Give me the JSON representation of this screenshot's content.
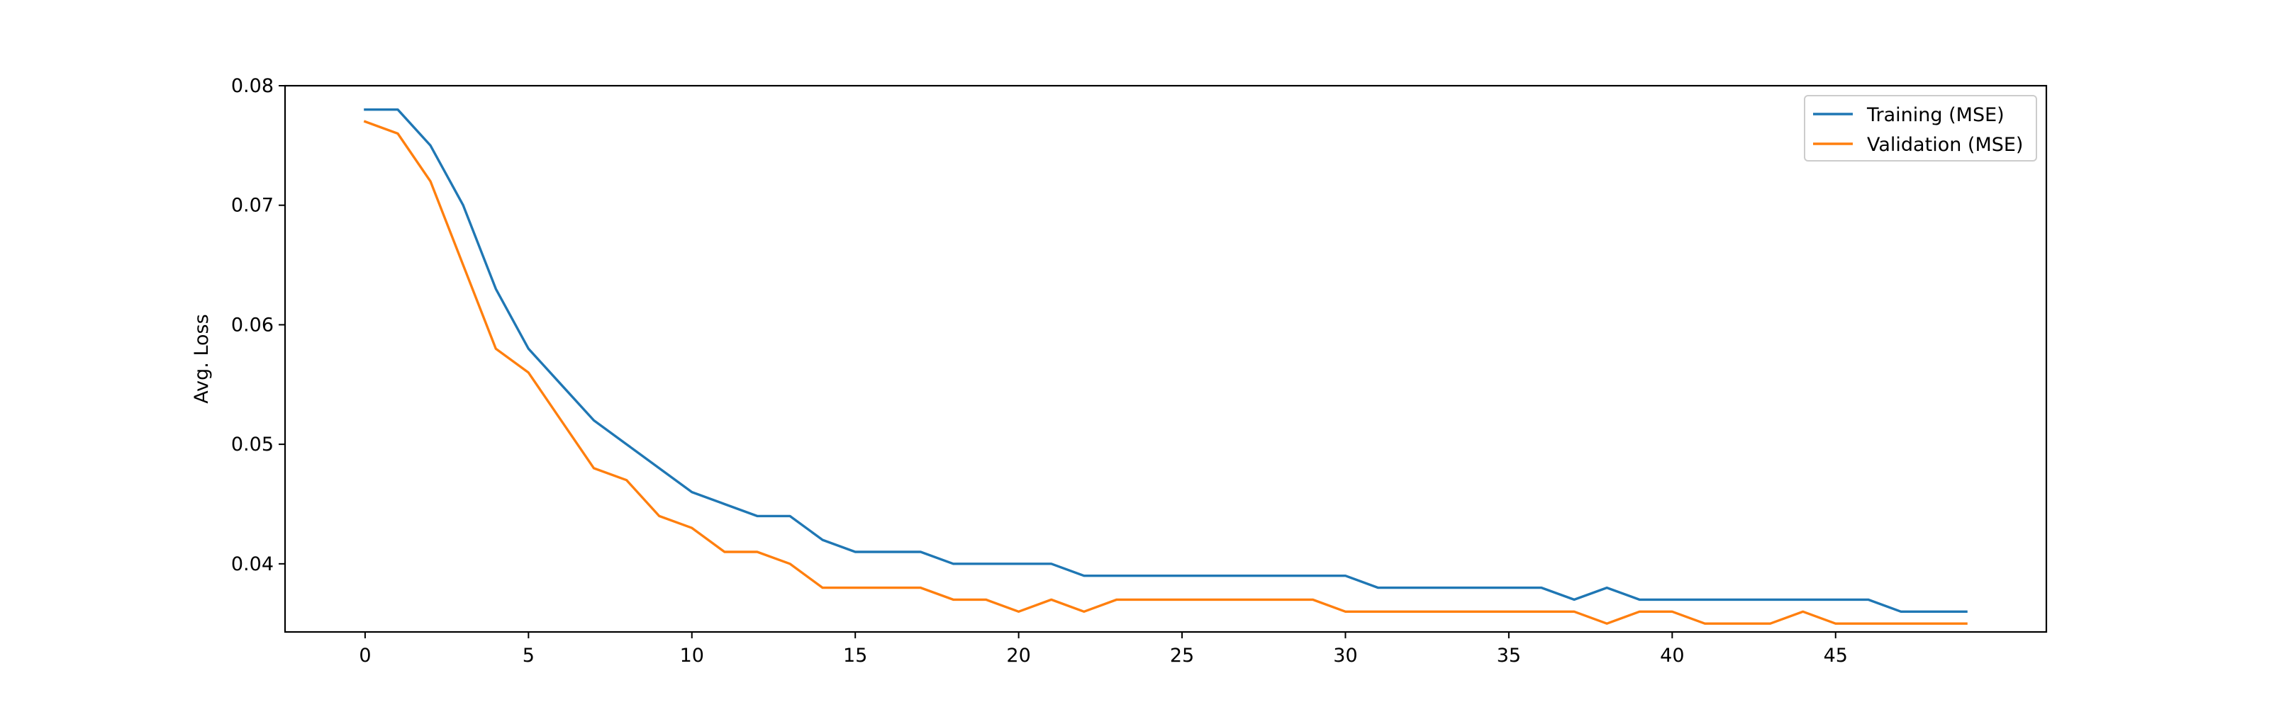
{
  "chart_data": {
    "type": "line",
    "title": "",
    "xlabel": "",
    "ylabel": "Avg. Loss",
    "xlim": [
      -2.45,
      51.45
    ],
    "ylim": [
      0.0343,
      0.08
    ],
    "xticks": [
      0,
      5,
      10,
      15,
      20,
      25,
      30,
      35,
      40,
      45
    ],
    "yticks": [
      0.04,
      0.05,
      0.06,
      0.07,
      0.08
    ],
    "ytick_labels": [
      "0.04",
      "0.05",
      "0.06",
      "0.07",
      "0.08"
    ],
    "grid": false,
    "legend_position": "top-right",
    "x": [
      0,
      1,
      2,
      3,
      4,
      5,
      6,
      7,
      8,
      9,
      10,
      11,
      12,
      13,
      14,
      15,
      16,
      17,
      18,
      19,
      20,
      21,
      22,
      23,
      24,
      25,
      26,
      27,
      28,
      29,
      30,
      31,
      32,
      33,
      34,
      35,
      36,
      37,
      38,
      39,
      40,
      41,
      42,
      43,
      44,
      45,
      46,
      47,
      48,
      49
    ],
    "series": [
      {
        "name": "Training (MSE)",
        "color": "#1f77b4",
        "values": [
          0.078,
          0.078,
          0.075,
          0.07,
          0.063,
          0.058,
          0.055,
          0.052,
          0.05,
          0.048,
          0.046,
          0.045,
          0.044,
          0.044,
          0.042,
          0.041,
          0.041,
          0.041,
          0.04,
          0.04,
          0.04,
          0.04,
          0.039,
          0.039,
          0.039,
          0.039,
          0.039,
          0.039,
          0.039,
          0.039,
          0.039,
          0.038,
          0.038,
          0.038,
          0.038,
          0.038,
          0.038,
          0.037,
          0.038,
          0.037,
          0.037,
          0.037,
          0.037,
          0.037,
          0.037,
          0.037,
          0.037,
          0.036,
          0.036,
          0.036
        ]
      },
      {
        "name": "Validation (MSE)",
        "color": "#ff7f0e",
        "values": [
          0.077,
          0.076,
          0.072,
          0.065,
          0.058,
          0.056,
          0.052,
          0.048,
          0.047,
          0.044,
          0.043,
          0.041,
          0.041,
          0.04,
          0.038,
          0.038,
          0.038,
          0.038,
          0.037,
          0.037,
          0.036,
          0.037,
          0.036,
          0.037,
          0.037,
          0.037,
          0.037,
          0.037,
          0.037,
          0.037,
          0.036,
          0.036,
          0.036,
          0.036,
          0.036,
          0.036,
          0.036,
          0.036,
          0.035,
          0.036,
          0.036,
          0.035,
          0.035,
          0.035,
          0.036,
          0.035,
          0.035,
          0.035,
          0.035,
          0.035
        ]
      }
    ]
  }
}
